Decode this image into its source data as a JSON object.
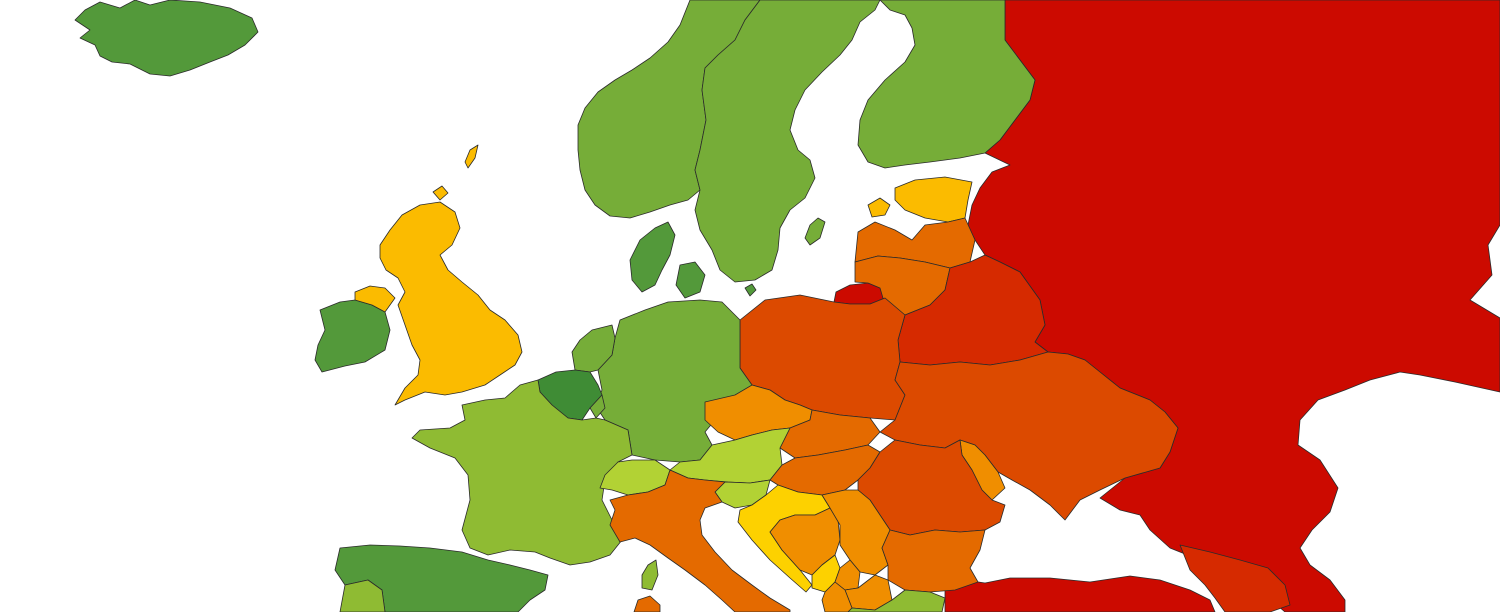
{
  "map": {
    "palette": {
      "dark_green": "#3f8c35",
      "medium_green": "#53993a",
      "green": "#76ad38",
      "light_green": "#8fbb33",
      "yellow_green": "#b2d234",
      "yellow": "#fdd100",
      "amber": "#fbbb00",
      "orange": "#f08e00",
      "dark_orange": "#e46a00",
      "red_orange": "#dc4a00",
      "dark_red_orange": "#d62a00",
      "red": "#cc0a00"
    },
    "regions": [
      {
        "id": "iceland",
        "color_key": "medium_green"
      },
      {
        "id": "norway",
        "color_key": "green"
      },
      {
        "id": "sweden",
        "color_key": "green"
      },
      {
        "id": "finland",
        "color_key": "green"
      },
      {
        "id": "denmark",
        "color_key": "medium_green"
      },
      {
        "id": "estonia",
        "color_key": "amber"
      },
      {
        "id": "latvia",
        "color_key": "dark_orange"
      },
      {
        "id": "lithuania",
        "color_key": "dark_orange"
      },
      {
        "id": "kaliningrad",
        "color_key": "red"
      },
      {
        "id": "russia",
        "color_key": "red"
      },
      {
        "id": "belarus",
        "color_key": "dark_red_orange"
      },
      {
        "id": "ukraine",
        "color_key": "red_orange"
      },
      {
        "id": "moldova",
        "color_key": "orange"
      },
      {
        "id": "poland",
        "color_key": "red_orange"
      },
      {
        "id": "germany",
        "color_key": "green"
      },
      {
        "id": "netherlands",
        "color_key": "green"
      },
      {
        "id": "belgium",
        "color_key": "dark_green"
      },
      {
        "id": "luxembourg",
        "color_key": "green"
      },
      {
        "id": "france",
        "color_key": "light_green"
      },
      {
        "id": "united-kingdom",
        "color_key": "amber"
      },
      {
        "id": "northern-ireland",
        "color_key": "amber"
      },
      {
        "id": "ireland",
        "color_key": "medium_green"
      },
      {
        "id": "czechia",
        "color_key": "orange"
      },
      {
        "id": "slovakia",
        "color_key": "dark_orange"
      },
      {
        "id": "austria",
        "color_key": "yellow_green"
      },
      {
        "id": "switzerland",
        "color_key": "yellow_green"
      },
      {
        "id": "hungary",
        "color_key": "dark_orange"
      },
      {
        "id": "romania",
        "color_key": "red_orange"
      },
      {
        "id": "slovenia",
        "color_key": "yellow_green"
      },
      {
        "id": "croatia",
        "color_key": "yellow"
      },
      {
        "id": "bosnia",
        "color_key": "orange"
      },
      {
        "id": "serbia",
        "color_key": "orange"
      },
      {
        "id": "montenegro",
        "color_key": "yellow"
      },
      {
        "id": "kosovo",
        "color_key": "orange"
      },
      {
        "id": "north-macedonia",
        "color_key": "orange"
      },
      {
        "id": "albania",
        "color_key": "orange"
      },
      {
        "id": "bulgaria",
        "color_key": "dark_orange"
      },
      {
        "id": "italy",
        "color_key": "dark_orange"
      },
      {
        "id": "corsica",
        "color_key": "light_green"
      },
      {
        "id": "sardinia",
        "color_key": "dark_orange"
      },
      {
        "id": "spain",
        "color_key": "medium_green"
      },
      {
        "id": "portugal",
        "color_key": "light_green"
      },
      {
        "id": "greece",
        "color_key": "light_green"
      },
      {
        "id": "turkey",
        "color_key": "red"
      },
      {
        "id": "georgia",
        "color_key": "dark_red_orange"
      },
      {
        "id": "shetland",
        "color_key": "amber"
      },
      {
        "id": "orkney",
        "color_key": "amber"
      },
      {
        "id": "gotland",
        "color_key": "green"
      },
      {
        "id": "saaremaa",
        "color_key": "amber"
      },
      {
        "id": "bornholm",
        "color_key": "medium_green"
      }
    ]
  }
}
